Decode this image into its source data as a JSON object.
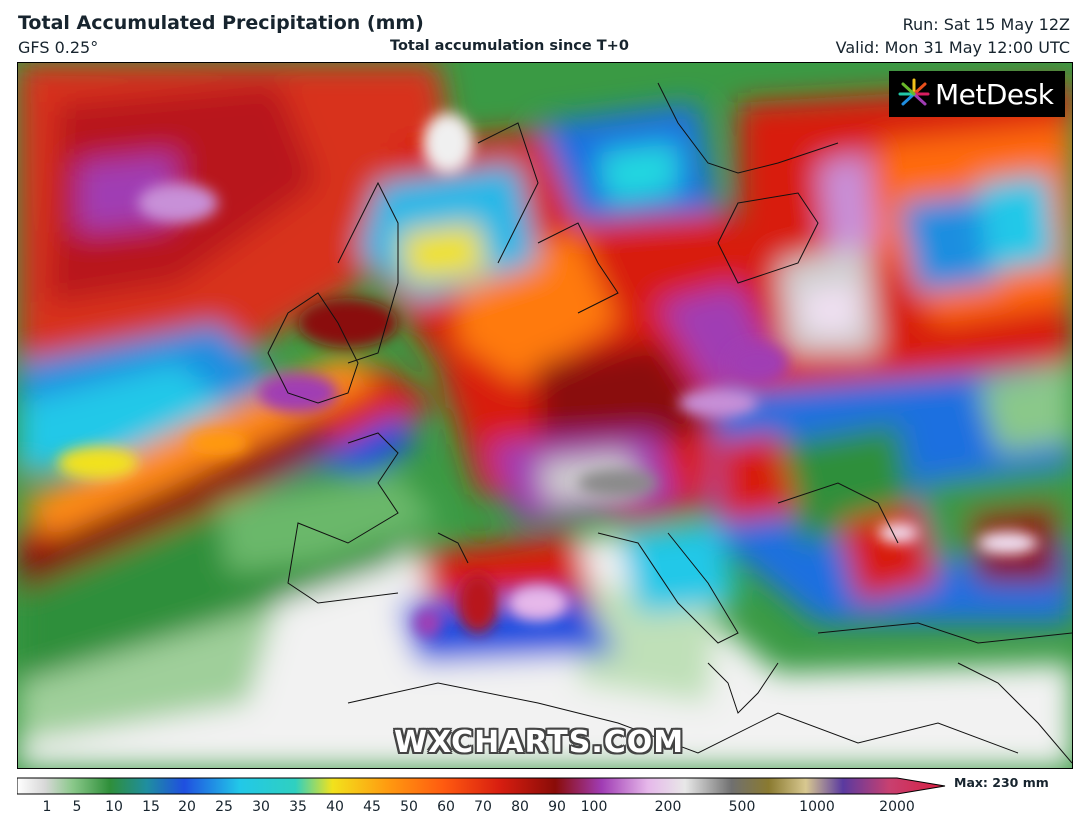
{
  "header": {
    "title": "Total Accumulated Precipitation (mm)",
    "model": "GFS 0.25°",
    "subtitle": "Total accumulation since T+0",
    "run": "Run: Sat 15 May 12Z",
    "valid": "Valid: Mon 31 May 12:00 UTC"
  },
  "branding": {
    "logo_text": "MetDesk",
    "watermark": "WXCHARTS.COM"
  },
  "legend": {
    "ticks": [
      "1",
      "5",
      "10",
      "15",
      "20",
      "25",
      "30",
      "35",
      "40",
      "45",
      "50",
      "60",
      "70",
      "80",
      "90",
      "100",
      "200",
      "500",
      "1000",
      "2000"
    ],
    "max_label": "Max: 230 mm"
  },
  "colors": {
    "dry": "#f4f4f4",
    "green": "#2f8f3a",
    "blue": "#1f4fe0",
    "cyan": "#22c8e8",
    "yellow": "#f2e21c",
    "orange": "#ff7a10",
    "red": "#d81e10",
    "darkred": "#8a0c08",
    "purple": "#a03cb4",
    "lilac": "#e6b8ea"
  }
}
